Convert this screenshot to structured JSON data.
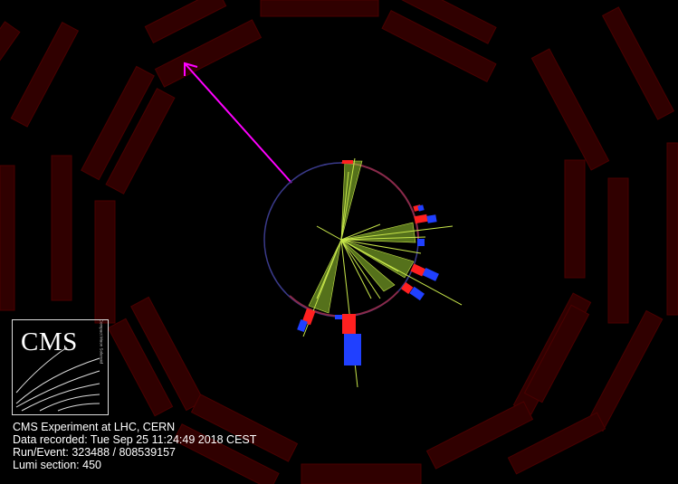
{
  "logo": {
    "text": "CMS",
    "side_text": "Compact Muon Solenoid"
  },
  "info": {
    "experiment": "CMS Experiment at LHC, CERN",
    "data_recorded": "Data recorded: Tue Sep 25 11:24:49 2018 CEST",
    "run_event": "Run/Event: 323488 / 808539157",
    "lumi_section": "Lumi section: 450"
  },
  "colors": {
    "background": "#000000",
    "muon_chambers": "#300000",
    "met_arrow": "#ff00ff",
    "tracker_circle": "#3a3a8a",
    "jet_cones": "#9acd32",
    "ecal_deposits": "#ff2020",
    "hcal_deposits": "#2040ff"
  }
}
